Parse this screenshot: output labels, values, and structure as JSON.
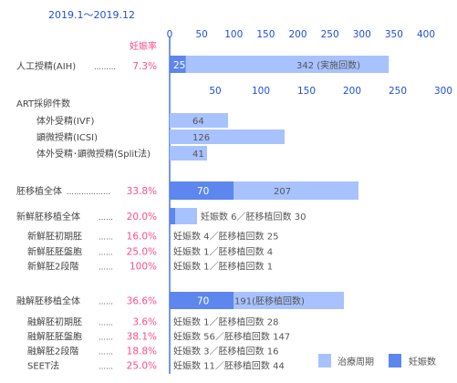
{
  "period": "2019.1～2019.12",
  "pregnancy_rate_header": "妊娠率",
  "colors": {
    "treatment": "#a7c2ff",
    "pregnancy": "#5d86ee",
    "axis": "#1f4fdc",
    "rate": "#ff4d88",
    "label": "#444444",
    "barText": "#ffffff",
    "noteText": "#555555"
  },
  "chart_data": [
    {
      "type": "bar",
      "name": "aih",
      "axis": {
        "min": 0,
        "max": 400,
        "ticks": [
          0,
          50,
          100,
          150,
          200,
          250,
          300,
          350,
          400
        ]
      },
      "rows": [
        {
          "label": "人工授精(AIH)",
          "leader": "………",
          "rate": "7.3%",
          "pregnancies": 25,
          "treatments": 342,
          "pregnancy_label": "25",
          "treatment_label": "342 (実施回数)"
        }
      ]
    },
    {
      "type": "bar",
      "name": "art",
      "axis": {
        "min": 0,
        "max": 300,
        "ticks": [
          50,
          100,
          150,
          200,
          250,
          300
        ]
      },
      "section_title": "ART採卵件数",
      "rows": [
        {
          "label": "体外受精(IVF)",
          "treatments": 64,
          "treatment_label": "64"
        },
        {
          "label": "顕微授精(ICSI)",
          "treatments": 126,
          "treatment_label": "126"
        },
        {
          "label": "体外受精･顕微授精(Split法)",
          "treatments": 41,
          "treatment_label": "41"
        }
      ]
    },
    {
      "type": "bar",
      "name": "transfer",
      "axis": {
        "min": 0,
        "max": 300
      },
      "rows": [
        {
          "label": "胚移植全体",
          "leader": "………………",
          "rate": "33.8%",
          "pregnancies": 70,
          "treatments": 207,
          "pregnancy_label": "70",
          "treatment_label": "207"
        },
        {
          "label": "新鮮胚移植全体",
          "leader": "……",
          "rate": "20.0%",
          "pregnancies": 6,
          "treatments": 30,
          "note": "妊娠数 6／胚移植回数 30"
        },
        {
          "label": "新鮮胚初期胚",
          "leader": "……",
          "rate": "16.0%",
          "pregnancies": 4,
          "treatments": 25,
          "note": "妊娠数 4／胚移植回数 25"
        },
        {
          "label": "新鮮胚胚盤胞",
          "leader": "……",
          "rate": "25.0%",
          "pregnancies": 1,
          "treatments": 4,
          "note": "妊娠数  1／胚移植回数  4"
        },
        {
          "label": "新鮮胚2段階",
          "leader": "……",
          "rate": "100%",
          "pregnancies": 1,
          "treatments": 1,
          "note": "妊娠数  1／胚移植回数  1"
        },
        {
          "label": "融解胚移植全体",
          "leader": "……",
          "rate": "36.6%",
          "pregnancies": 70,
          "treatments": 191,
          "pregnancy_label": "70",
          "treatment_label": "191(胚移植回数)"
        },
        {
          "label": "融解胚初期胚",
          "leader": "……",
          "rate": "3.6%",
          "pregnancies": 1,
          "treatments": 28,
          "note": "妊娠数 1／胚移植回数  28"
        },
        {
          "label": "融解胚胚盤胞",
          "leader": "……",
          "rate": "38.1%",
          "pregnancies": 56,
          "treatments": 147,
          "note": "妊娠数 56／胚移植回数 147"
        },
        {
          "label": "融解胚2段階",
          "leader": "……",
          "rate": "18.8%",
          "pregnancies": 3,
          "treatments": 16,
          "note": "妊娠数  3／胚移植回数  16"
        },
        {
          "label": "SEET法",
          "leader": "……",
          "rate": "25.0%",
          "pregnancies": 11,
          "treatments": 44,
          "note": "妊娠数 11／胚移植回数 44"
        }
      ]
    }
  ],
  "legend": [
    {
      "key": "treatment",
      "label": "治療周期"
    },
    {
      "key": "pregnancy",
      "label": "妊娠数"
    }
  ]
}
